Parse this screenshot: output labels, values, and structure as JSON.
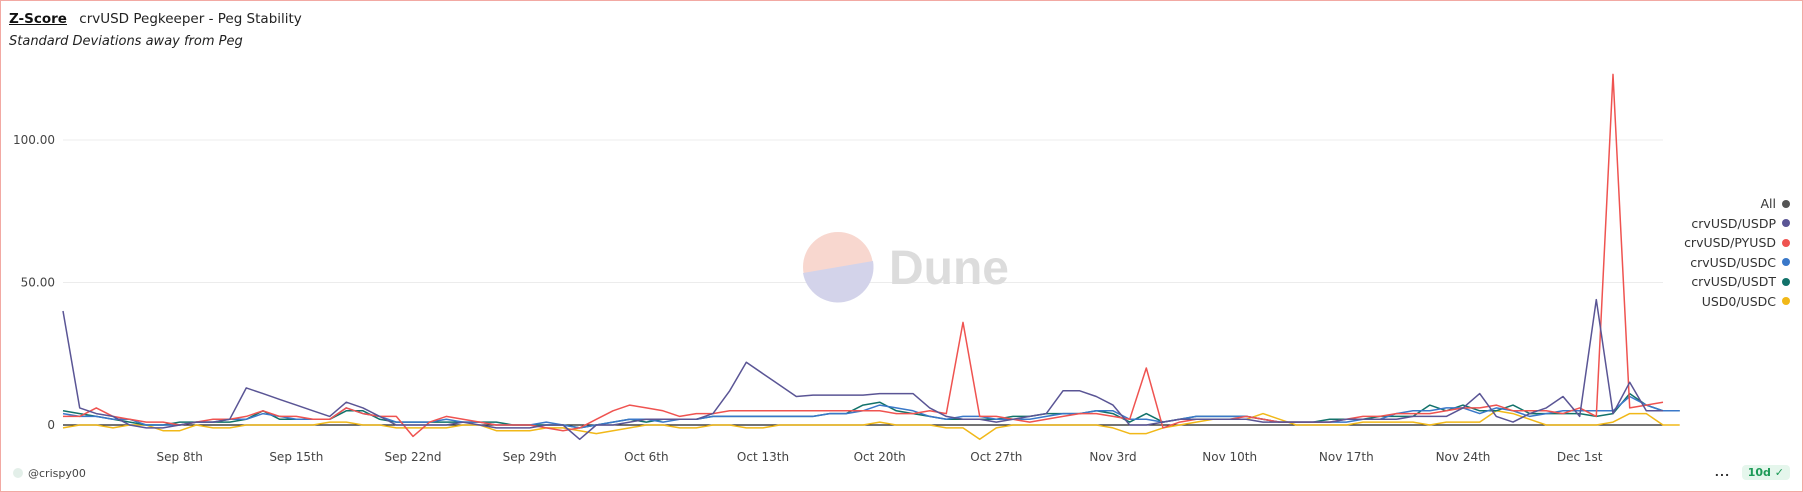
{
  "header": {
    "link_label": "Z-Score",
    "title": "crvUSD Pegkeeper - Peg Stability",
    "subtitle": "Standard Deviations away from Peg"
  },
  "watermark": {
    "text": "Dune"
  },
  "footer": {
    "user": "@crispy00",
    "more": "...",
    "badge": "10d",
    "badge_icon": "check-circle-icon"
  },
  "chart_data": {
    "type": "line",
    "title": "crvUSD Pegkeeper - Peg Stability",
    "subtitle": "Standard Deviations away from Peg",
    "xlabel": "",
    "ylabel": "",
    "x_start": "Sep 1",
    "x_end": "Dec 3",
    "x_step_days": 1,
    "ylim": [
      -12,
      135
    ],
    "yticks": [
      0,
      50,
      100
    ],
    "ytick_labels": [
      "0",
      "50.00",
      "100.00"
    ],
    "xticks": [
      "Sep 8th",
      "Sep 15th",
      "Sep 22nd",
      "Sep 29th",
      "Oct 6th",
      "Oct 13th",
      "Oct 20th",
      "Oct 27th",
      "Nov 3rd",
      "Nov 10th",
      "Nov 17th",
      "Nov 24th",
      "Dec 1st"
    ],
    "xtick_days": [
      7,
      14,
      21,
      28,
      35,
      42,
      49,
      56,
      63,
      70,
      77,
      84,
      91
    ],
    "legend_position": "right",
    "legend_all_label": "All",
    "legend_all_color": "#555555",
    "grid": "horizontal",
    "series": [
      {
        "name": "crvUSD/USDP",
        "color": "#5a5595",
        "values": [
          40,
          6,
          4,
          3,
          0,
          -1,
          -1,
          0,
          1,
          1,
          2,
          13,
          11,
          9,
          7,
          5,
          3,
          8,
          6,
          3,
          0,
          0,
          0,
          0,
          1,
          0,
          -1,
          -1,
          -1,
          0,
          0,
          -5,
          0,
          0,
          1,
          2,
          2,
          2,
          2,
          4,
          12,
          22,
          18,
          14,
          10,
          10.5,
          10.5,
          10.5,
          10.5,
          11,
          11,
          11,
          6,
          3,
          2,
          2,
          1,
          2,
          3,
          4,
          12,
          12,
          10,
          7,
          0,
          0,
          1,
          2,
          2,
          2,
          2,
          2,
          1,
          1,
          1,
          1,
          1,
          2,
          2,
          2,
          2,
          3,
          3,
          3,
          6,
          11,
          3,
          1,
          4,
          6,
          10,
          3,
          44,
          4,
          15,
          5,
          5
        ]
      },
      {
        "name": "crvUSD/PYUSD",
        "color": "#ef5350",
        "values": [
          3,
          3,
          6,
          3,
          2,
          1,
          1,
          0,
          1,
          2,
          2,
          3,
          5,
          3,
          3,
          2,
          2,
          6,
          4,
          3,
          3,
          -4,
          1,
          3,
          2,
          1,
          0,
          0,
          0,
          -1,
          -2,
          -1,
          2,
          5,
          7,
          6,
          5,
          3,
          4,
          4,
          5,
          5,
          5,
          5,
          5,
          5,
          5,
          5,
          5,
          5,
          4,
          4,
          5,
          4,
          36,
          3,
          3,
          2,
          1,
          2,
          3,
          4,
          4,
          3,
          2,
          20,
          -1,
          1,
          2,
          2,
          2,
          3,
          2,
          1,
          1,
          1,
          1,
          2,
          3,
          3,
          4,
          4,
          4,
          5,
          6,
          6,
          7,
          5,
          5,
          5,
          4,
          6,
          3,
          123,
          6,
          7,
          8
        ]
      },
      {
        "name": "crvUSD/USDC",
        "color": "#3a78c9",
        "values": [
          4,
          3,
          3,
          2,
          2,
          0,
          0,
          0,
          1,
          1,
          2,
          2,
          4,
          3,
          2,
          2,
          2,
          6,
          4,
          3,
          1,
          1,
          1,
          2,
          1,
          1,
          0,
          0,
          0,
          1,
          0,
          -1,
          0,
          1,
          2,
          2,
          1,
          2,
          2,
          3,
          3,
          3,
          3,
          3,
          3,
          3,
          4,
          4,
          5,
          7,
          6,
          5,
          3,
          2,
          3,
          3,
          2,
          2,
          2,
          3,
          4,
          4,
          5,
          5,
          2,
          2,
          1,
          2,
          3,
          3,
          3,
          3,
          2,
          1,
          1,
          1,
          1,
          1,
          2,
          2,
          4,
          5,
          5,
          6,
          6,
          4,
          6,
          5,
          3,
          4,
          5,
          5,
          5,
          5,
          10,
          7,
          5,
          5
        ]
      },
      {
        "name": "crvUSD/USDT",
        "color": "#12726a",
        "values": [
          5,
          4,
          3,
          2,
          1,
          0,
          0,
          1,
          1,
          1,
          1,
          2,
          5,
          2,
          2,
          2,
          2,
          5,
          5,
          2,
          1,
          1,
          1,
          1,
          1,
          1,
          1,
          0,
          0,
          0,
          0,
          -1,
          0,
          1,
          2,
          1,
          2,
          2,
          2,
          3,
          3,
          3,
          3,
          3,
          3,
          3,
          4,
          4,
          7,
          8,
          5,
          4,
          3,
          2,
          2,
          2,
          2,
          3,
          3,
          4,
          4,
          4,
          5,
          4,
          1,
          4,
          1,
          2,
          3,
          3,
          3,
          3,
          2,
          1,
          1,
          1,
          2,
          2,
          2,
          3,
          3,
          3,
          7,
          5,
          7,
          5,
          5,
          7,
          4,
          4,
          4,
          4,
          3,
          4,
          11,
          7,
          5,
          5
        ]
      },
      {
        "name": "USD0/USDC",
        "color": "#f1b818",
        "values": [
          -1,
          0,
          0,
          -1,
          0,
          0,
          -2,
          -2,
          0,
          -1,
          -1,
          0,
          0,
          0,
          0,
          0,
          1,
          1,
          0,
          0,
          -1,
          -1,
          -1,
          -1,
          0,
          0,
          -2,
          -2,
          -2,
          -1,
          -1,
          -2,
          -3,
          -2,
          -1,
          0,
          0,
          -1,
          -1,
          0,
          0,
          -1,
          -1,
          0,
          0,
          0,
          0,
          0,
          0,
          1,
          0,
          0,
          0,
          -1,
          -1,
          -5,
          -1,
          0,
          0,
          0,
          0,
          0,
          0,
          -1,
          -3,
          -3,
          -1,
          0,
          1,
          2,
          2,
          2,
          4,
          2,
          0,
          0,
          0,
          0,
          1,
          1,
          1,
          1,
          0,
          1,
          1,
          1,
          5,
          4,
          2,
          0,
          0,
          0,
          0,
          1,
          4,
          4,
          0,
          0
        ]
      }
    ]
  }
}
